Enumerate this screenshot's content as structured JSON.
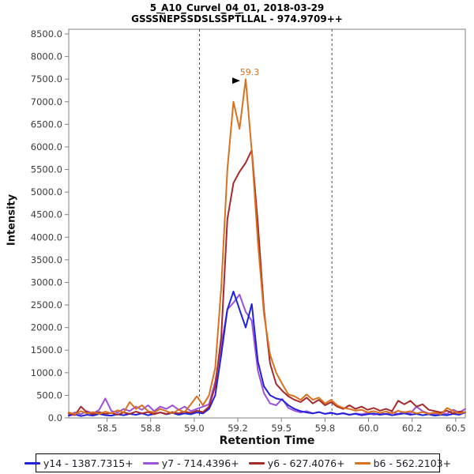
{
  "header": {
    "title": "5_A10_Curvel_04_01, 2018-03-29",
    "subtitle": "GSSSN̅EPS̅SDSLSS̅PT̅LLAL - 974.9709++"
  },
  "chart_data": {
    "type": "line",
    "title": "5_A10_Curvel_04_01, 2018-03-29",
    "subtitle": "GSSSNEPSSDSLSSPTLLAL - 974.9709++",
    "xlabel": "Retention Time",
    "ylabel": "Intensity",
    "xlim": [
      58.28,
      60.555
    ],
    "ylim": [
      0,
      8605
    ],
    "grid": false,
    "legend_position": "bottom",
    "x_ticks": [
      {
        "value": 58.5,
        "label": "58.5"
      },
      {
        "value": 58.75,
        "label": "58.8"
      },
      {
        "value": 59.0,
        "label": "59.0"
      },
      {
        "value": 59.25,
        "label": "59.2"
      },
      {
        "value": 59.5,
        "label": "59.5"
      },
      {
        "value": 59.75,
        "label": "59.8"
      },
      {
        "value": 60.0,
        "label": "60.0"
      },
      {
        "value": 60.25,
        "label": "60.2"
      },
      {
        "value": 60.5,
        "label": "60.5"
      }
    ],
    "y_ticks": [
      {
        "value": 0,
        "label": "0.0"
      },
      {
        "value": 500,
        "label": "500.0"
      },
      {
        "value": 1000,
        "label": "1000.0"
      },
      {
        "value": 1500,
        "label": "1500.0"
      },
      {
        "value": 2000,
        "label": "2000.0"
      },
      {
        "value": 2500,
        "label": "2500.0"
      },
      {
        "value": 3000,
        "label": "3000.0"
      },
      {
        "value": 3500,
        "label": "3500.0"
      },
      {
        "value": 4000,
        "label": "4000.0"
      },
      {
        "value": 4500,
        "label": "4500.0"
      },
      {
        "value": 5000,
        "label": "5000.0"
      },
      {
        "value": 5500,
        "label": "5500.0"
      },
      {
        "value": 6000,
        "label": "6000.0"
      },
      {
        "value": 6500,
        "label": "6500.0"
      },
      {
        "value": 7000,
        "label": "7000.0"
      },
      {
        "value": 7500,
        "label": "7500.0"
      },
      {
        "value": 8000,
        "label": "8000.0"
      },
      {
        "value": 8500,
        "label": "8500.0"
      }
    ],
    "peak_boundaries": {
      "values": [
        59.03,
        59.79
      ],
      "style": "dashed",
      "color": "#4d4d4d"
    },
    "peak_annotation": {
      "label": "59.3",
      "x": 59.295,
      "y": 7500,
      "color": "#D9711F",
      "arrow": "right-triangle"
    },
    "x": [
      58.28,
      58.315,
      58.35,
      58.385,
      58.42,
      58.455,
      58.49,
      58.525,
      58.56,
      58.595,
      58.63,
      58.665,
      58.7,
      58.735,
      58.77,
      58.805,
      58.84,
      58.875,
      58.91,
      58.945,
      58.98,
      59.015,
      59.05,
      59.085,
      59.12,
      59.155,
      59.19,
      59.225,
      59.26,
      59.295,
      59.33,
      59.365,
      59.4,
      59.435,
      59.47,
      59.505,
      59.54,
      59.575,
      59.61,
      59.645,
      59.68,
      59.715,
      59.75,
      59.785,
      59.82,
      59.855,
      59.89,
      59.925,
      59.96,
      59.995,
      60.03,
      60.065,
      60.1,
      60.135,
      60.17,
      60.205,
      60.24,
      60.275,
      60.31,
      60.345,
      60.38,
      60.415,
      60.45,
      60.485,
      60.52,
      60.555
    ],
    "series": [
      {
        "name": "y14 - 1387.7315+",
        "color": "#2222DC",
        "values": [
          50,
          80,
          40,
          70,
          50,
          90,
          60,
          50,
          80,
          60,
          90,
          70,
          100,
          60,
          90,
          120,
          80,
          110,
          70,
          100,
          80,
          120,
          100,
          200,
          500,
          1400,
          2400,
          2800,
          2400,
          2000,
          2520,
          1250,
          700,
          500,
          430,
          400,
          280,
          200,
          150,
          120,
          100,
          130,
          90,
          110,
          80,
          100,
          70,
          90,
          60,
          80,
          100,
          70,
          90,
          60,
          80,
          100,
          70,
          90,
          60,
          80,
          50,
          70,
          60,
          90,
          70,
          120
        ]
      },
      {
        "name": "y7 - 714.4396+",
        "color": "#9B51D8",
        "values": [
          60,
          120,
          80,
          150,
          100,
          180,
          430,
          150,
          120,
          200,
          150,
          250,
          180,
          280,
          150,
          250,
          200,
          280,
          180,
          250,
          150,
          200,
          250,
          300,
          800,
          1600,
          2400,
          2550,
          2730,
          2350,
          2150,
          1050,
          550,
          320,
          280,
          420,
          220,
          160,
          120,
          150,
          100,
          130,
          90,
          120,
          80,
          110,
          70,
          100,
          80,
          110,
          70,
          100,
          80,
          120,
          90,
          130,
          100,
          250,
          150,
          100,
          80,
          110,
          90,
          180,
          120,
          200
        ]
      },
      {
        "name": "y6 - 627.4076+",
        "color": "#A52A2A",
        "values": [
          100,
          60,
          250,
          120,
          80,
          130,
          90,
          110,
          70,
          120,
          90,
          140,
          100,
          130,
          80,
          120,
          90,
          130,
          100,
          140,
          110,
          160,
          130,
          250,
          700,
          1800,
          4400,
          5200,
          5450,
          5650,
          5930,
          4300,
          2400,
          1200,
          750,
          600,
          480,
          400,
          350,
          450,
          320,
          400,
          280,
          350,
          250,
          200,
          280,
          200,
          250,
          180,
          220,
          160,
          200,
          150,
          380,
          300,
          380,
          250,
          300,
          180,
          150,
          120,
          160,
          100,
          140,
          120
        ]
      },
      {
        "name": "b6 - 562.2103+",
        "color": "#D9711F",
        "values": [
          120,
          80,
          150,
          100,
          130,
          90,
          140,
          100,
          170,
          120,
          350,
          200,
          280,
          150,
          120,
          200,
          150,
          100,
          180,
          130,
          300,
          480,
          280,
          500,
          1100,
          2900,
          5500,
          7000,
          6400,
          7500,
          5900,
          3900,
          2300,
          1400,
          1000,
          750,
          520,
          480,
          400,
          520,
          400,
          450,
          320,
          400,
          280,
          220,
          200,
          160,
          180,
          120,
          150,
          110,
          140,
          100,
          160,
          120,
          150,
          100,
          130,
          90,
          120,
          80,
          220,
          150,
          100,
          130
        ]
      }
    ]
  },
  "style": {
    "frame_color": "#808080",
    "tick_label_color": "#3a3a3a",
    "line_width": 2
  }
}
